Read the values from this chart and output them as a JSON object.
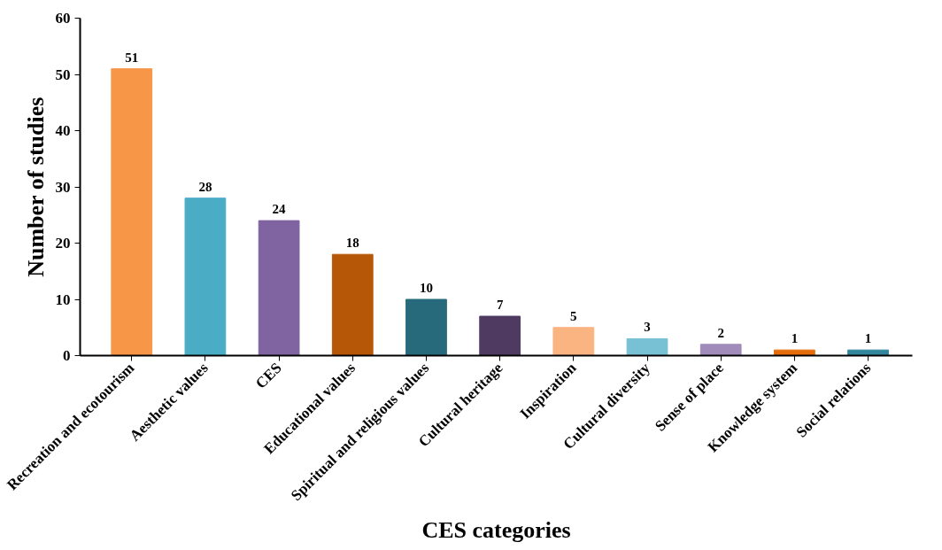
{
  "chart_data": {
    "type": "bar",
    "xlabel": "CES categories",
    "ylabel": "Number of studies",
    "categories": [
      "Recreation and ecotourism",
      "Aesthetic values",
      "CES",
      "Educational values",
      "Spiritual and religious values",
      "Cultural heritage",
      "Inspiration",
      "Cultural diversity",
      "Sense of place",
      "Knowledge system",
      "Social relations"
    ],
    "values": [
      51,
      28,
      24,
      18,
      10,
      7,
      5,
      3,
      2,
      1,
      1
    ],
    "colors": [
      "#f79646",
      "#4bacc6",
      "#8064a2",
      "#b65708",
      "#266a7c",
      "#4f3b62",
      "#fab482",
      "#78c0d4",
      "#a08bba",
      "#e46c0a",
      "#31859c"
    ],
    "ylim": [
      0,
      60
    ],
    "yticks": [
      0,
      10,
      20,
      30,
      40,
      50,
      60
    ],
    "grid": false,
    "data_labels": true
  }
}
